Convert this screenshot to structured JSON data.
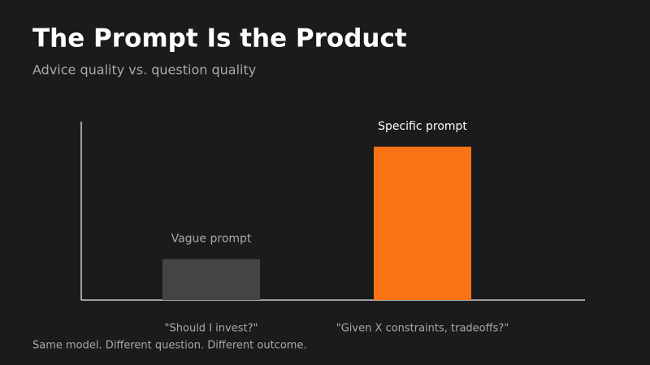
{
  "chart_data": {
    "type": "bar",
    "title": "The Prompt Is the Product",
    "subtitle": "Advice quality vs. question quality",
    "categories": [
      "\"Should I invest?\"",
      "\"Given X constraints, tradeoffs?\""
    ],
    "bar_labels": [
      "Vague prompt",
      "Specific prompt"
    ],
    "values": [
      23,
      86
    ],
    "colors": [
      "#444444",
      "#f97316"
    ],
    "ylim": [
      0,
      100
    ],
    "caption": "Same model. Different question. Different outcome."
  }
}
